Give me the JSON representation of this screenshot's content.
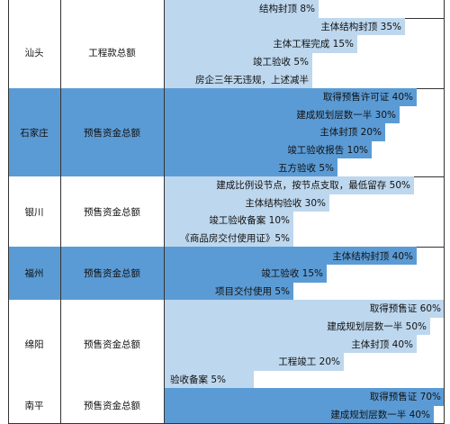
{
  "colors": {
    "dark": "#5b9bd5",
    "light": "#bdd7ee",
    "white": "#ffffff",
    "grid": "#333333"
  },
  "groups": [
    {
      "city": "",
      "fund_type": "",
      "dark": false,
      "rows": [
        {
          "label": "结构封顶 8%",
          "fraction": 0.55,
          "align": "right"
        }
      ]
    },
    {
      "city": "汕头",
      "fund_type": "工程款总额",
      "dark": false,
      "rows": [
        {
          "label": "主体结构封顶 35%",
          "fraction": 0.86,
          "align": "right"
        },
        {
          "label": "主体工程完成 15%",
          "fraction": 0.69,
          "align": "right"
        },
        {
          "label": "竣工验收 5%",
          "fraction": 0.53,
          "align": "right"
        },
        {
          "label": "房企三年无违规，上述减半",
          "fraction": 0.53,
          "align": "right"
        }
      ]
    },
    {
      "city": "石家庄",
      "fund_type": "预售资金总额",
      "dark": true,
      "rows": [
        {
          "label": "取得预售许可证 40%",
          "fraction": 0.9,
          "align": "right"
        },
        {
          "label": "建成规划层数一半 30%",
          "fraction": 0.84,
          "align": "right"
        },
        {
          "label": "主体封顶 20%",
          "fraction": 0.79,
          "align": "right"
        },
        {
          "label": "竣工验收报告 10%",
          "fraction": 0.74,
          "align": "right"
        },
        {
          "label": "五方验收 5%",
          "fraction": 0.62,
          "align": "right"
        }
      ]
    },
    {
      "city": "银川",
      "fund_type": "预售资金总额",
      "dark": false,
      "rows": [
        {
          "label": "建成比例设节点，按节点支取，最低留存 50%",
          "fraction": 0.89,
          "align": "right"
        },
        {
          "label": "主体结构验收 30%",
          "fraction": 0.59,
          "align": "right"
        },
        {
          "label": "竣工验收备案 10%",
          "fraction": 0.46,
          "align": "right"
        },
        {
          "label": "《商品房交付使用证》5%",
          "fraction": 0.46,
          "align": "right"
        }
      ]
    },
    {
      "city": "福州",
      "fund_type": "预售资金总额",
      "dark": true,
      "rows": [
        {
          "label": "主体结构封顶 40%",
          "fraction": 0.9,
          "align": "right"
        },
        {
          "label": "竣工验收 15%",
          "fraction": 0.58,
          "align": "right"
        },
        {
          "label": "项目交付使用 5%",
          "fraction": 0.46,
          "align": "right"
        }
      ]
    },
    {
      "city": "绵阳",
      "fund_type": "预售资金总额",
      "dark": false,
      "rows": [
        {
          "label": "取得预售证 60%",
          "fraction": 1.0,
          "align": "right"
        },
        {
          "label": "建成规划层数一半 50%",
          "fraction": 0.95,
          "align": "right"
        },
        {
          "label": "主体封顶 40%",
          "fraction": 0.9,
          "align": "right"
        },
        {
          "label": "工程竣工 20%",
          "fraction": 0.64,
          "align": "right"
        },
        {
          "label": "验收备案 5%",
          "fraction": 0.32,
          "align": "left"
        }
      ]
    },
    {
      "city": "南平",
      "fund_type": "预售资金总额",
      "dark": false,
      "rows": [
        {
          "label": "取得预售证 70%",
          "fraction": 1.0,
          "align": "right",
          "dark_fill": true
        },
        {
          "label": "建成规划层数一半 40%",
          "fraction": 0.96,
          "align": "right",
          "dark_fill": true
        }
      ]
    }
  ]
}
